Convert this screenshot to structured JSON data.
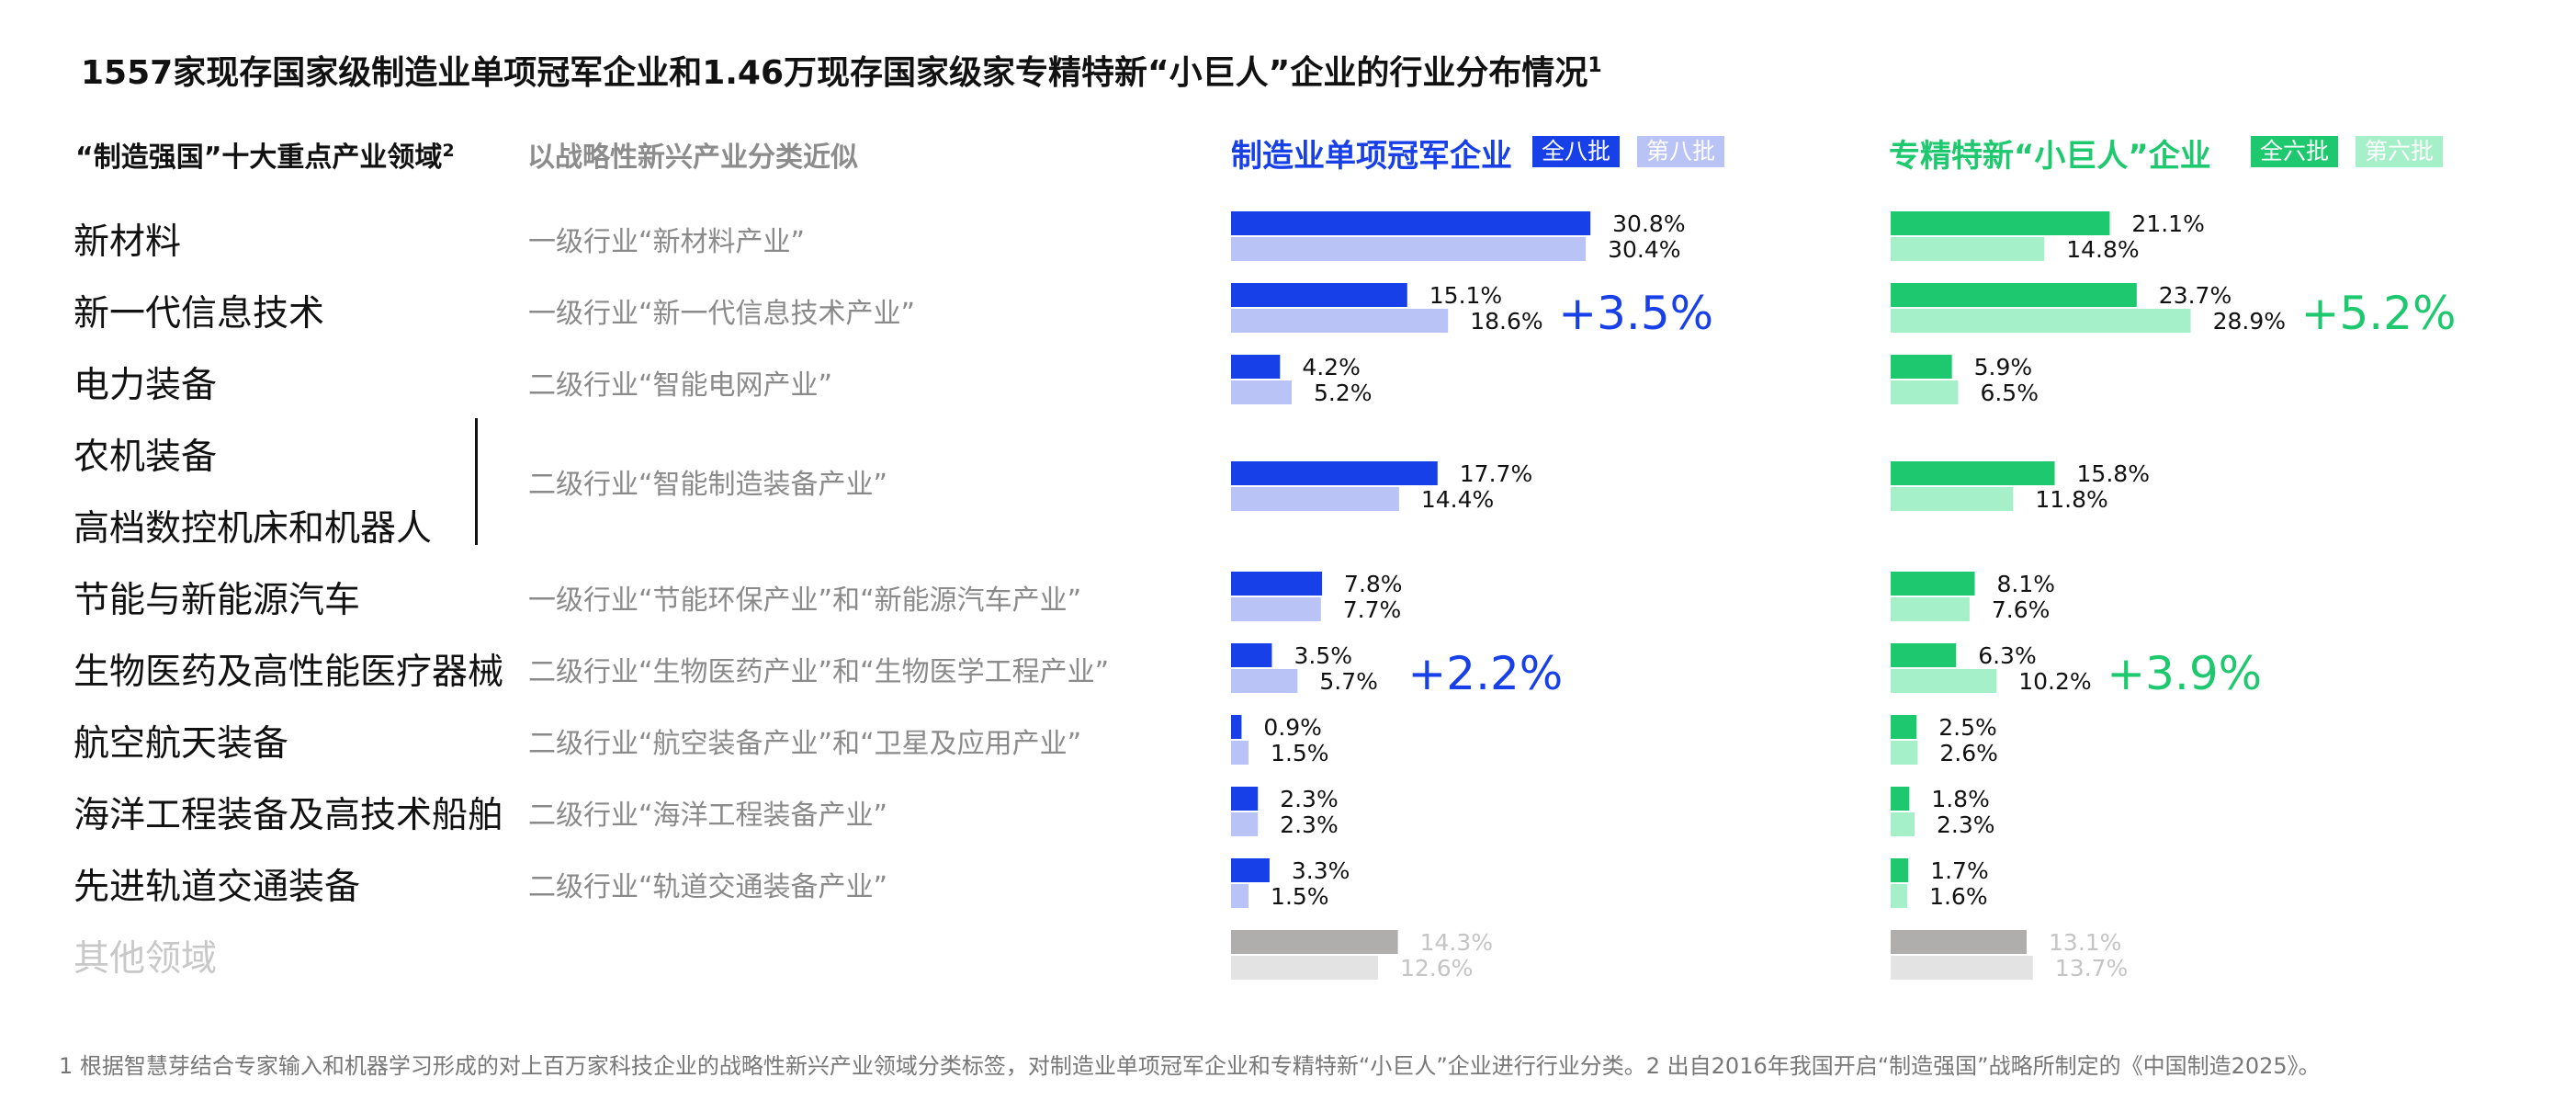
{
  "title": "1557家现存国家级制造业单项冠军企业和1.46万现存国家级家专精特新“小巨人”企业的行业分布情况",
  "title_sup": "1",
  "headers": {
    "left": "“制造强国”十大重点产业领域",
    "left_sup": "2",
    "mid": "以战略性新兴产业分类近似",
    "champion": "制造业单项冠军企业",
    "champion_badge_all": "全八批",
    "champion_badge_last": "第八批",
    "giant": "专精特新“小巨人”企业",
    "giant_badge_all": "全六批",
    "giant_badge_last": "第六批"
  },
  "rows": {
    "r0": {
      "label": "新材料",
      "mid": "一级行业“新材料产业”"
    },
    "r1": {
      "label": "新一代信息技术",
      "mid": "一级行业“新一代信息技术产业”"
    },
    "r2": {
      "label": "电力装备",
      "mid": "二级行业“智能电网产业”"
    },
    "r3a": {
      "label": "农机装备"
    },
    "r3b": {
      "label": "高档数控机床和机器人",
      "mid": "二级行业“智能制造装备产业”"
    },
    "r4": {
      "label": "节能与新能源汽车",
      "mid": "一级行业“节能环保产业”和“新能源汽车产业”"
    },
    "r5": {
      "label": "生物医药及高性能医疗器械",
      "mid": "二级行业“生物医药产业”和“生物医学工程产业”"
    },
    "r6": {
      "label": "航空航天装备",
      "mid": "二级行业“航空装备产业”和“卫星及应用产业”"
    },
    "r7": {
      "label": "海洋工程装备及高技术船舶",
      "mid": "二级行业“海洋工程装备产业”"
    },
    "r8": {
      "label": "先进轨道交通装备",
      "mid": "二级行业“轨道交通装备产业”"
    },
    "r9": {
      "label": "其他领域"
    }
  },
  "colors": {
    "champion_all": "#1740e8",
    "champion_last": "#b9c3f6",
    "giant_all": "#1ec86e",
    "giant_last": "#a5f0c9",
    "other_all": "#b0adad",
    "other_last": "#e3e3e3"
  },
  "footnote": "1 根据智慧芽结合专家输入和机器学习形成的对上百万家科技企业的战略性新兴产业领域分类标签，对制造业单项冠军企业和专精特新“小巨人”企业进行行业分类。2 出自2016年我国开启“制造强国”战略所制定的《中国制造2025》。",
  "chart_data": [
    {
      "type": "bar",
      "orientation": "horizontal",
      "title": "制造业单项冠军企业",
      "categories": [
        "新材料",
        "新一代信息技术",
        "电力装备",
        "农机装备/高档数控机床和机器人",
        "节能与新能源汽车",
        "生物医药及高性能医疗器械",
        "航空航天装备",
        "海洋工程装备及高技术船舶",
        "先进轨道交通装备",
        "其他领域"
      ],
      "series": [
        {
          "name": "全八批",
          "values": [
            30.8,
            15.1,
            4.2,
            17.7,
            7.8,
            3.5,
            0.9,
            2.3,
            3.3,
            14.3
          ],
          "labels": [
            "30.8%",
            "15.1%",
            "4.2%",
            "17.7%",
            "7.8%",
            "3.5%",
            "0.9%",
            "2.3%",
            "3.3%",
            "14.3%"
          ]
        },
        {
          "name": "第八批",
          "values": [
            30.4,
            18.6,
            5.2,
            14.4,
            7.7,
            5.7,
            1.5,
            2.3,
            1.5,
            12.6
          ],
          "labels": [
            "30.4%",
            "18.6%",
            "5.2%",
            "14.4%",
            "7.7%",
            "5.7%",
            "1.5%",
            "2.3%",
            "1.5%",
            "12.6%"
          ]
        }
      ],
      "annotations": [
        {
          "category": "新一代信息技术",
          "text": "+3.5%"
        },
        {
          "category": "生物医药及高性能医疗器械",
          "text": "+2.2%"
        }
      ]
    },
    {
      "type": "bar",
      "orientation": "horizontal",
      "title": "专精特新“小巨人”企业",
      "categories": [
        "新材料",
        "新一代信息技术",
        "电力装备",
        "农机装备/高档数控机床和机器人",
        "节能与新能源汽车",
        "生物医药及高性能医疗器械",
        "航空航天装备",
        "海洋工程装备及高技术船舶",
        "先进轨道交通装备",
        "其他领域"
      ],
      "series": [
        {
          "name": "全六批",
          "values": [
            21.1,
            23.7,
            5.9,
            15.8,
            8.1,
            6.3,
            2.5,
            1.8,
            1.7,
            13.1
          ],
          "labels": [
            "21.1%",
            "23.7%",
            "5.9%",
            "15.8%",
            "8.1%",
            "6.3%",
            "2.5%",
            "1.8%",
            "1.7%",
            "13.1%"
          ]
        },
        {
          "name": "第六批",
          "values": [
            14.8,
            28.9,
            6.5,
            11.8,
            7.6,
            10.2,
            2.6,
            2.3,
            1.6,
            13.7
          ],
          "labels": [
            "14.8%",
            "28.9%",
            "6.5%",
            "11.8%",
            "7.6%",
            "10.2%",
            "2.6%",
            "2.3%",
            "1.6%",
            "13.7%"
          ]
        }
      ],
      "annotations": [
        {
          "category": "新一代信息技术",
          "text": "+5.2%"
        },
        {
          "category": "生物医药及高性能医疗器械",
          "text": "+3.9%"
        }
      ]
    }
  ]
}
